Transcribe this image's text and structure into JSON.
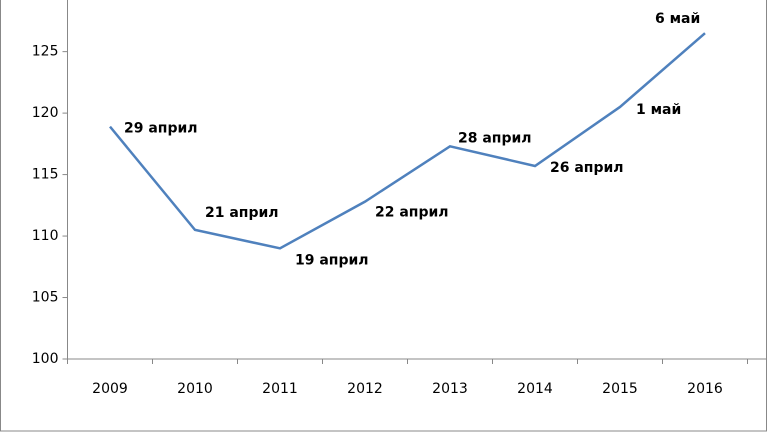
{
  "chart_data": {
    "type": "line",
    "categories": [
      "2009",
      "2010",
      "2011",
      "2012",
      "2013",
      "2014",
      "2015",
      "2016"
    ],
    "values": [
      118.9,
      110.5,
      109.0,
      112.8,
      117.3,
      115.7,
      120.5,
      126.5
    ],
    "annotations": [
      "29 април",
      "21 април",
      "19 април",
      "22 април",
      "28 април",
      "26 април",
      "1 май",
      "6 май"
    ],
    "color": "#4f81bd",
    "ylim": [
      100,
      129.2
    ],
    "yticks": [
      100,
      105,
      110,
      115,
      120,
      125
    ],
    "grid": false
  }
}
